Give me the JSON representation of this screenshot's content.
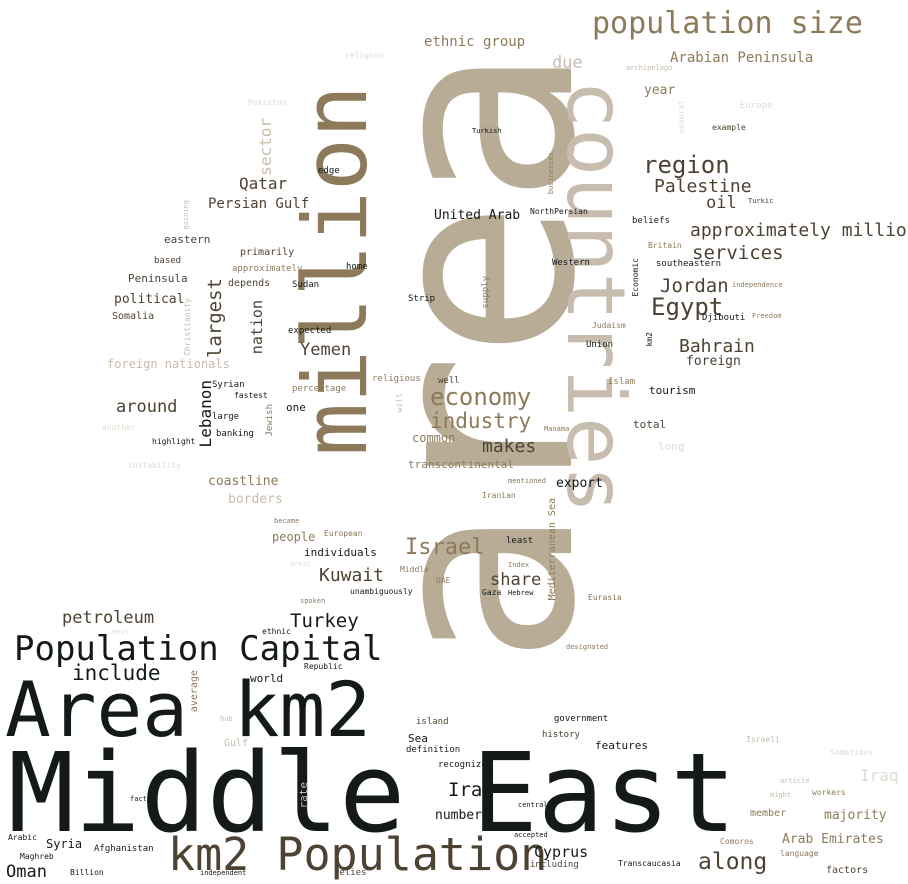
{
  "words": [
    {
      "text": "Middle East",
      "color": "#131a18"
    },
    {
      "text": "area",
      "color": "#b8ac97"
    },
    {
      "text": "million",
      "color": "#8d7a5b"
    },
    {
      "text": "countries",
      "color": "#c7bcae"
    },
    {
      "text": "Area km2",
      "color": "#131a18"
    },
    {
      "text": "km2 Population",
      "color": "#4d4334"
    },
    {
      "text": "Population Capital",
      "color": "#131a18"
    },
    {
      "text": "population size",
      "color": "#8d7a5b"
    },
    {
      "text": "economy",
      "color": "#8d7a5b"
    },
    {
      "text": "industry",
      "color": "#8d7a5b"
    },
    {
      "text": "region",
      "color": "#4d4334"
    },
    {
      "text": "Egypt",
      "color": "#4d4334"
    },
    {
      "text": "Israel",
      "color": "#8d7a5b"
    },
    {
      "text": "Palestine",
      "color": "#4d4334"
    },
    {
      "text": "approximately million",
      "color": "#4d4334"
    },
    {
      "text": "services",
      "color": "#4d4334"
    },
    {
      "text": "Jordan",
      "color": "#4d4334"
    },
    {
      "text": "Bahrain",
      "color": "#4d4334"
    },
    {
      "text": "Turkey",
      "color": "#131a18"
    },
    {
      "text": "Kuwait",
      "color": "#4d4334"
    },
    {
      "text": "Yemen",
      "color": "#4d4334"
    },
    {
      "text": "makes",
      "color": "#4d4334"
    },
    {
      "text": "share",
      "color": "#4d4334"
    },
    {
      "text": "along",
      "color": "#4d4334"
    },
    {
      "text": "Iran",
      "color": "#131a18"
    },
    {
      "text": "include",
      "color": "#131a18"
    },
    {
      "text": "petroleum",
      "color": "#4d4334"
    },
    {
      "text": "around",
      "color": "#4d4334"
    },
    {
      "text": "largest",
      "color": "#4d4334"
    },
    {
      "text": "Lebanon",
      "color": "#131a18"
    },
    {
      "text": "nation",
      "color": "#4d4334"
    },
    {
      "text": "sector",
      "color": "#c7bcae"
    },
    {
      "text": "Qatar",
      "color": "#4d4334"
    },
    {
      "text": "Persian Gulf",
      "color": "#4d4334"
    },
    {
      "text": "oil",
      "color": "#4d4334"
    },
    {
      "text": "due",
      "color": "#c7bcae"
    },
    {
      "text": "ethnic group",
      "color": "#8d7a5b"
    },
    {
      "text": "Arabian Peninsula",
      "color": "#8d7a5b"
    },
    {
      "text": "year",
      "color": "#8d7a5b"
    },
    {
      "text": "United Arab",
      "color": "#131a18"
    },
    {
      "text": "Cyprus",
      "color": "#131a18"
    },
    {
      "text": "Iraq",
      "color": "#e0dbd3"
    },
    {
      "text": "majority",
      "color": "#8d7a5b"
    },
    {
      "text": "Arab Emirates",
      "color": "#8d7a5b"
    },
    {
      "text": "Oman",
      "color": "#131a18"
    },
    {
      "text": "Syria",
      "color": "#131a18"
    },
    {
      "text": "coastline",
      "color": "#8d7a5b"
    },
    {
      "text": "borders",
      "color": "#c7bcae"
    },
    {
      "text": "political",
      "color": "#4d4334"
    },
    {
      "text": "foreign nationals",
      "color": "#c7bcae"
    },
    {
      "text": "Peninsula",
      "color": "#4d4334"
    },
    {
      "text": "tourism",
      "color": "#131a18"
    },
    {
      "text": "foreign",
      "color": "#4d4334"
    },
    {
      "text": "common",
      "color": "#8d7a5b"
    },
    {
      "text": "transcontinental",
      "color": "#8d7a5b"
    },
    {
      "text": "export",
      "color": "#131a18"
    },
    {
      "text": "people",
      "color": "#8d7a5b"
    },
    {
      "text": "individuals",
      "color": "#131a18"
    },
    {
      "text": "number",
      "color": "#131a18"
    },
    {
      "text": "features",
      "color": "#131a18"
    },
    {
      "text": "Sea",
      "color": "#131a18"
    },
    {
      "text": "Mediterranean Sea",
      "color": "#8d7a5b"
    },
    {
      "text": "world",
      "color": "#131a18"
    },
    {
      "text": "rate",
      "color": "#c7bcae"
    },
    {
      "text": "average",
      "color": "#8d7a5b"
    },
    {
      "text": "total",
      "color": "#4d4334"
    },
    {
      "text": "long",
      "color": "#e0dbd3"
    },
    {
      "text": "eastern",
      "color": "#4d4334"
    },
    {
      "text": "based",
      "color": "#4d4334"
    },
    {
      "text": "Somalia",
      "color": "#4d4334"
    },
    {
      "text": "primarily",
      "color": "#4d4334"
    },
    {
      "text": "approximately",
      "color": "#8d7a5b"
    },
    {
      "text": "depends",
      "color": "#4d4334"
    },
    {
      "text": "home",
      "color": "#131a18"
    },
    {
      "text": "Sudan",
      "color": "#131a18"
    },
    {
      "text": "edge",
      "color": "#131a18"
    },
    {
      "text": "Strip",
      "color": "#131a18"
    },
    {
      "text": "supply",
      "color": "#8d7a5b"
    },
    {
      "text": "expected",
      "color": "#131a18"
    },
    {
      "text": "percentage",
      "color": "#8d7a5b"
    },
    {
      "text": "one",
      "color": "#131a18"
    },
    {
      "text": "religious",
      "color": "#8d7a5b"
    },
    {
      "text": "well",
      "color": "#4d4334"
    },
    {
      "text": "will",
      "color": "#c7bcae"
    },
    {
      "text": "Jewish",
      "color": "#8d7a5b"
    },
    {
      "text": "Syrian",
      "color": "#131a18"
    },
    {
      "text": "fastest",
      "color": "#131a18"
    },
    {
      "text": "large",
      "color": "#131a18"
    },
    {
      "text": "banking",
      "color": "#131a18"
    },
    {
      "text": "highlight",
      "color": "#131a18"
    },
    {
      "text": "another",
      "color": "#e0dbd3"
    },
    {
      "text": "instability",
      "color": "#e0dbd3"
    },
    {
      "text": "Christianity",
      "color": "#c7bcae"
    },
    {
      "text": "gaining",
      "color": "#c7bcae"
    },
    {
      "text": "Pakistan",
      "color": "#e0dbd3"
    },
    {
      "text": "religion",
      "color": "#e0dbd3"
    },
    {
      "text": "Turkish",
      "color": "#131a18"
    },
    {
      "text": "businesses",
      "color": "#8d7a5b"
    },
    {
      "text": "NorthPersian",
      "color": "#131a18"
    },
    {
      "text": "beliefs",
      "color": "#131a18"
    },
    {
      "text": "Britain",
      "color": "#8d7a5b"
    },
    {
      "text": "southeastern",
      "color": "#131a18"
    },
    {
      "text": "Western",
      "color": "#131a18"
    },
    {
      "text": "Economic",
      "color": "#131a18"
    },
    {
      "text": "independence",
      "color": "#8d7a5b"
    },
    {
      "text": "Djibouti",
      "color": "#131a18"
    },
    {
      "text": "Freedom",
      "color": "#8d7a5b"
    },
    {
      "text": "Judaism",
      "color": "#8d7a5b"
    },
    {
      "text": "km2",
      "color": "#131a18"
    },
    {
      "text": "Union",
      "color": "#131a18"
    },
    {
      "text": "Islam",
      "color": "#8d7a5b"
    },
    {
      "text": "Manama",
      "color": "#8d7a5b"
    },
    {
      "text": "Iranian",
      "color": "#8d7a5b"
    },
    {
      "text": "mentioned",
      "color": "#8d7a5b"
    },
    {
      "text": "became",
      "color": "#8d7a5b"
    },
    {
      "text": "European",
      "color": "#8d7a5b"
    },
    {
      "text": "least",
      "color": "#131a18"
    },
    {
      "text": "Great",
      "color": "#e0dbd3"
    },
    {
      "text": "Middle",
      "color": "#8d7a5b"
    },
    {
      "text": "Index",
      "color": "#8d7a5b"
    },
    {
      "text": "UAE",
      "color": "#8d7a5b"
    },
    {
      "text": "Gaza",
      "color": "#131a18"
    },
    {
      "text": "Hebrew",
      "color": "#131a18"
    },
    {
      "text": "unambiguously",
      "color": "#131a18"
    },
    {
      "text": "spoken",
      "color": "#8d7a5b"
    },
    {
      "text": "Eurasia",
      "color": "#8d7a5b"
    },
    {
      "text": "designated",
      "color": "#8d7a5b"
    },
    {
      "text": "ethnic",
      "color": "#131a18"
    },
    {
      "text": "next",
      "color": "#e0dbd3"
    },
    {
      "text": "Republic",
      "color": "#131a18"
    },
    {
      "text": "hub",
      "color": "#c7bcae"
    },
    {
      "text": "Gulf",
      "color": "#c7bcae"
    },
    {
      "text": "island",
      "color": "#4d4334"
    },
    {
      "text": "government",
      "color": "#131a18"
    },
    {
      "text": "history",
      "color": "#4d4334"
    },
    {
      "text": "definition",
      "color": "#131a18"
    },
    {
      "text": "recognized",
      "color": "#131a18"
    },
    {
      "text": "central",
      "color": "#131a18"
    },
    {
      "text": "accepted",
      "color": "#131a18"
    },
    {
      "text": "including",
      "color": "#4d4334"
    },
    {
      "text": "relies",
      "color": "#4d4334"
    },
    {
      "text": "Transcaucasia",
      "color": "#131a18"
    },
    {
      "text": "Comoros",
      "color": "#8d7a5b"
    },
    {
      "text": "factors",
      "color": "#4d4334"
    },
    {
      "text": "language",
      "color": "#8d7a5b"
    },
    {
      "text": "member",
      "color": "#8d7a5b"
    },
    {
      "text": "workers",
      "color": "#8d7a5b"
    },
    {
      "text": "might",
      "color": "#c7bcae"
    },
    {
      "text": "article",
      "color": "#c7bcae"
    },
    {
      "text": "Sometimes",
      "color": "#e0dbd3"
    },
    {
      "text": "Israeli",
      "color": "#c7bcae"
    },
    {
      "text": "fact",
      "color": "#131a18"
    },
    {
      "text": "Arabic",
      "color": "#131a18"
    },
    {
      "text": "Maghreb",
      "color": "#131a18"
    },
    {
      "text": "Afghanistan",
      "color": "#131a18"
    },
    {
      "text": "Billion",
      "color": "#131a18"
    },
    {
      "text": "independent",
      "color": "#131a18"
    },
    {
      "text": "Europe",
      "color": "#e0dbd3"
    },
    {
      "text": "archipelago",
      "color": "#c7bcae"
    },
    {
      "text": "example",
      "color": "#4d4334"
    },
    {
      "text": "Turkic",
      "color": "#4d4334"
    },
    {
      "text": "several",
      "color": "#e0dbd3"
    }
  ]
}
